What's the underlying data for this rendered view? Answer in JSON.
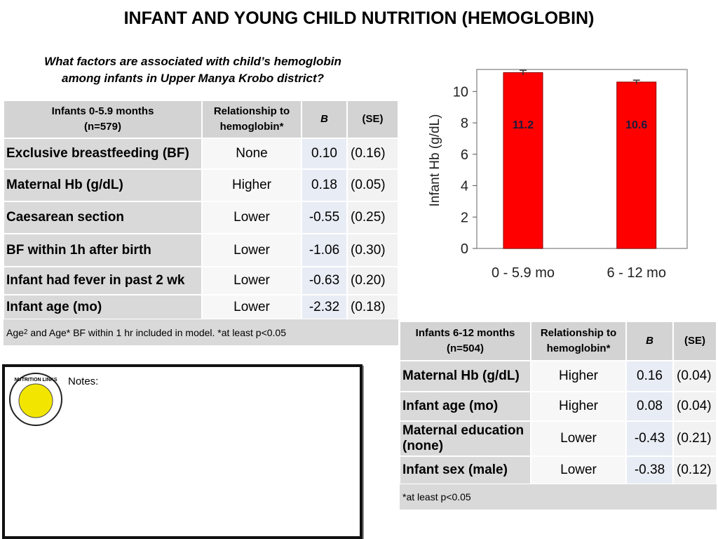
{
  "title": "INFANT AND YOUNG CHILD NUTRITION (HEMOGLOBIN)",
  "question": [
    "What factors are associated with child’s hemoglobin",
    "among infants in Upper Manya Krobo district?"
  ],
  "table1": {
    "header": [
      [
        "Infants 0-5.9 months",
        "(n=579)"
      ],
      [
        "Relationship to",
        "hemoglobin*"
      ],
      [
        "B"
      ],
      [
        "(SE)"
      ]
    ],
    "rows": [
      [
        "Exclusive breastfeeding (BF)",
        "None",
        "0.10",
        "(0.16)"
      ],
      [
        "Maternal Hb (g/dL)",
        "Higher",
        "0.18",
        "(0.05)"
      ],
      [
        "Caesarean section",
        "Lower",
        "-0.55",
        "(0.25)"
      ],
      [
        "BF within 1h after birth",
        "Lower",
        "-1.06",
        "(0.30)"
      ],
      [
        "Infant had fever in past 2 wk",
        "Lower",
        "-0.63",
        "(0.20)"
      ],
      [
        "Infant age (mo)",
        "Lower",
        "-2.32",
        "(0.18)"
      ]
    ],
    "footnote": [
      "Age",
      "2",
      " and Age* BF within 1 hr included in model. *at least p<0.05"
    ]
  },
  "table2": {
    "header": [
      [
        "Infants 6-12 months",
        "(n=504)"
      ],
      [
        "Relationship to",
        "hemoglobin*"
      ],
      [
        "B"
      ],
      [
        "(SE)"
      ]
    ],
    "rows": [
      [
        "Maternal Hb (g/dL)",
        "Higher",
        "0.16",
        "(0.04)"
      ],
      [
        "Infant age (mo)",
        "Higher",
        "0.08",
        "(0.04)"
      ],
      [
        "Maternal education (none)",
        "Lower",
        "-0.43",
        "(0.21)"
      ],
      [
        "Infant sex (male)",
        "Lower",
        "-0.38",
        "(0.12)"
      ]
    ],
    "footnote": [
      "*at least p<0.05"
    ]
  },
  "notes": {
    "label": "Notes:",
    "logo": "NUTRITION LINKS"
  },
  "chart_data": {
    "type": "bar",
    "ylabel": "Infant Hb (g/dL)",
    "categories": [
      "0 - 5.9 mo",
      "6 - 12 mo"
    ],
    "values": [
      11.2,
      10.6
    ],
    "errors": [
      0.15,
      0.12
    ],
    "color": "#ff0000",
    "ylim": [
      0,
      11.4
    ],
    "yticks": [
      0,
      2,
      4,
      6,
      8,
      10
    ]
  }
}
